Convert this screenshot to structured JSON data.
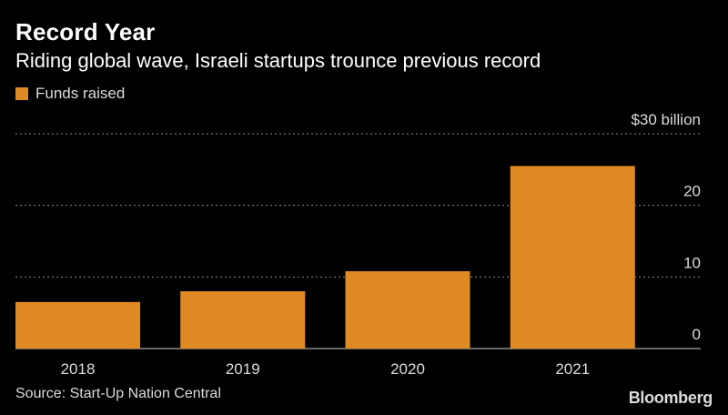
{
  "header": {
    "title": "Record Year",
    "subtitle": "Riding global wave, Israeli startups trounce previous record"
  },
  "legend": {
    "label": "Funds raised",
    "color": "#e08a24"
  },
  "footer": {
    "source": "Source: Start-Up Nation Central",
    "brand": "Bloomberg"
  },
  "chart_data": {
    "type": "bar",
    "categories": [
      "2018",
      "2019",
      "2020",
      "2021"
    ],
    "series": [
      {
        "name": "Funds raised",
        "values": [
          6.5,
          8.0,
          10.8,
          25.5
        ],
        "color": "#e08a24"
      }
    ],
    "ylim": [
      0,
      30
    ],
    "yticks": [
      {
        "value": 30,
        "label": "$30 billion"
      },
      {
        "value": 20,
        "label": "20"
      },
      {
        "value": 10,
        "label": "10"
      },
      {
        "value": 0,
        "label": "0"
      }
    ],
    "grid": true,
    "grid_style": "dotted",
    "ylabel": "",
    "xlabel": ""
  }
}
